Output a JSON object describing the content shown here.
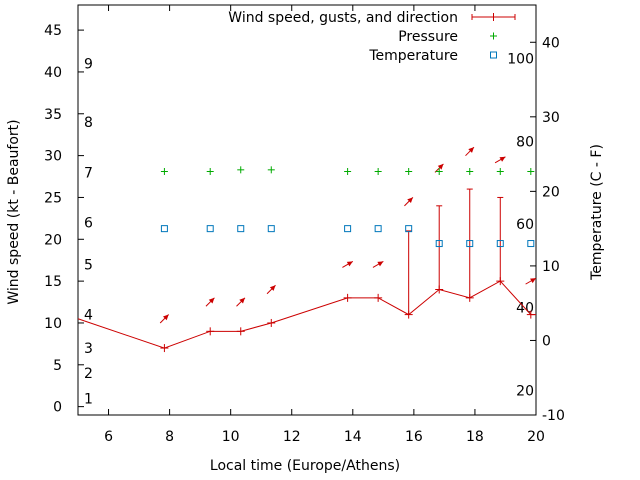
{
  "chart_data": {
    "type": "line",
    "xlabel": "Local time (Europe/Athens)",
    "ylabel": "Wind speed (kt - Beaufort)",
    "y2label": "Temperature (C - F)",
    "xlim": [
      5,
      20
    ],
    "x_ticks": [
      6,
      8,
      10,
      12,
      14,
      16,
      18,
      20
    ],
    "ylim": [
      -1,
      48
    ],
    "y_ticks": [
      0,
      5,
      10,
      15,
      20,
      25,
      30,
      35,
      40,
      45
    ],
    "y2lim": [
      -10,
      45
    ],
    "y2_ticks": [
      -10,
      0,
      10,
      20,
      30,
      40
    ],
    "beaufort_labels": [
      {
        "label": "1",
        "kt": 1
      },
      {
        "label": "2",
        "kt": 4
      },
      {
        "label": "3",
        "kt": 7
      },
      {
        "label": "4",
        "kt": 11
      },
      {
        "label": "5",
        "kt": 17
      },
      {
        "label": "6",
        "kt": 22
      },
      {
        "label": "7",
        "kt": 28
      },
      {
        "label": "8",
        "kt": 34
      },
      {
        "label": "9",
        "kt": 41
      }
    ],
    "fahrenheit_labels": [
      {
        "label": "20",
        "c": -6.7
      },
      {
        "label": "40",
        "c": 4.4
      },
      {
        "label": "60",
        "c": 15.6
      },
      {
        "label": "80",
        "c": 26.7
      },
      {
        "label": "100",
        "c": 37.8
      }
    ],
    "legend_position": "top-right",
    "grid": false,
    "series": [
      {
        "name": "Wind speed, gusts, and direction",
        "color": "#cc0000",
        "x": [
          5,
          7.83,
          9.33,
          10.33,
          11.33,
          13.83,
          14.83,
          15.83,
          16.83,
          17.83,
          18.83,
          19.83,
          20
        ],
        "values": [
          10.5,
          7,
          9,
          9,
          10,
          13,
          13,
          11,
          14,
          13,
          15,
          11,
          11
        ],
        "gusts": [
          null,
          null,
          null,
          null,
          null,
          null,
          null,
          21,
          24,
          26,
          25,
          null,
          null
        ],
        "arrow_x": [
          7.83,
          9.33,
          10.33,
          11.33,
          13.83,
          14.83,
          15.83,
          16.83,
          17.83,
          18.83,
          19.83
        ],
        "arrow_level": [
          10.5,
          12.5,
          12.5,
          14,
          17,
          17,
          24.5,
          28.5,
          30.5,
          29.5,
          15
        ],
        "arrow_direction_deg": [
          225,
          225,
          225,
          225,
          240,
          240,
          225,
          225,
          225,
          240,
          240
        ]
      },
      {
        "name": "Pressure",
        "color": "#00aa00",
        "marker": "plus",
        "x": [
          7.83,
          9.33,
          10.33,
          11.33,
          13.83,
          14.83,
          15.83,
          16.83,
          17.83,
          18.83,
          19.83
        ],
        "values": [
          28.1,
          28.1,
          28.3,
          28.3,
          28.1,
          28.1,
          28.1,
          28.1,
          28.1,
          28.1,
          28.1
        ]
      },
      {
        "name": "Temperature",
        "color": "#0077bb",
        "marker": "square",
        "x": [
          7.83,
          9.33,
          10.33,
          11.33,
          13.83,
          14.83,
          15.83,
          16.83,
          17.83,
          18.83,
          19.83
        ],
        "values": [
          15,
          15,
          15,
          15,
          15,
          15,
          15,
          13,
          13,
          13,
          13
        ]
      }
    ]
  }
}
